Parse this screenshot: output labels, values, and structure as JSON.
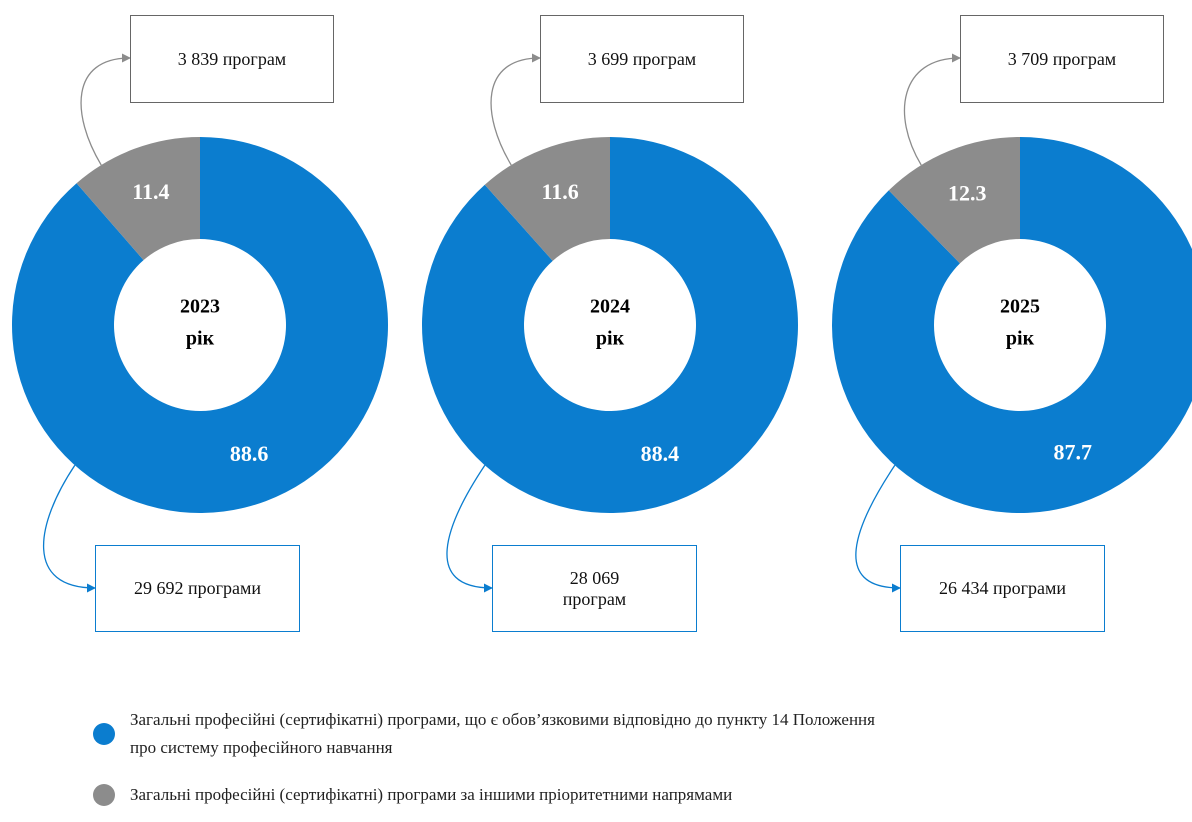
{
  "chart_data": [
    {
      "type": "donut",
      "title": "2023",
      "subtitle": "рік",
      "values": [
        88.6,
        11.4
      ],
      "callouts": [
        "29 692 програми",
        "3 839 програм"
      ],
      "colors": [
        "#0b7dcf",
        "#8c8c8c"
      ]
    },
    {
      "type": "donut",
      "title": "2024",
      "subtitle": "рік",
      "values": [
        88.4,
        11.6
      ],
      "callouts": [
        "28 069 програм",
        "3 699 програм"
      ],
      "colors": [
        "#0b7dcf",
        "#8c8c8c"
      ]
    },
    {
      "type": "donut",
      "title": "2025",
      "subtitle": "рік",
      "values": [
        87.7,
        12.3
      ],
      "callouts": [
        "26 434 програми",
        "3 709 програм"
      ],
      "colors": [
        "#0b7dcf",
        "#8c8c8c"
      ]
    }
  ],
  "legend": [
    {
      "name": "Загальні професійні (сертифікатні) програми, що є обов’язковими відповідно до пункту 14 Положення про систему професійного навчання",
      "color": "#0b7dcf"
    },
    {
      "name": "Загальні професійні (сертифікатні) програми за іншими пріоритетними напрямами",
      "color": "#8c8c8c"
    }
  ]
}
